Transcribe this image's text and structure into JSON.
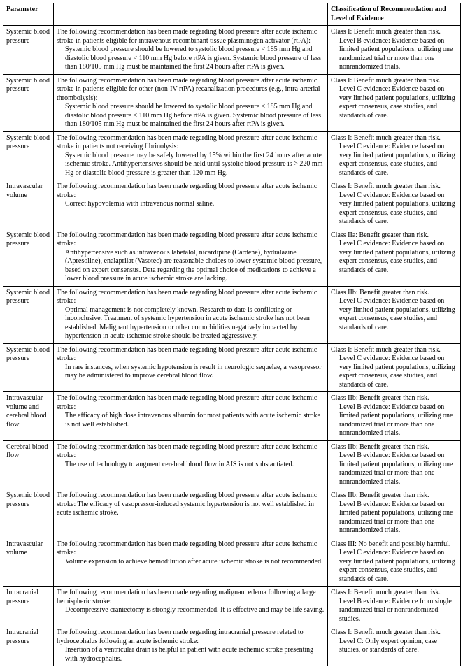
{
  "headers": {
    "parameter": "Parameter",
    "description": "",
    "classification": "Classification of Recommendation and Level of Evidence"
  },
  "rows": [
    {
      "parameter": "Systemic blood pressure",
      "desc_intro": "The following recommendation has been made regarding blood pressure after acute ischemic stroke in patients eligible for intravenous recombinant tissue plasminogen activator (rtPA):",
      "desc_body": "Systemic blood pressure should be lowered to systolic blood pressure < 185 mm Hg and diastolic blood pressure < 110 mm Hg before rtPA is given. Systemic blood pressure of less than 180/105 mm Hg must be maintained the first 24 hours after rtPA is given.",
      "class_line1": "Class I: Benefit much greater than risk.",
      "class_line2": "Level B evidence: Evidence based on limited patient populations, utilizing one randomized trial or more than one nonrandomized trials."
    },
    {
      "parameter": "Systemic blood pressure",
      "desc_intro": "The following recommendation has been made regarding blood pressure after acute ischemic stroke in patients eligible for other (non-IV rtPA) recanalization procedures (e.g., intra-arterial thrombolysis):",
      "desc_body": "Systemic blood pressure should be lowered to systolic blood pressure < 185 mm Hg and diastolic blood pressure < 110 mm Hg before rtPA is given. Systemic blood pressure of less than 180/105 mm Hg must be maintained the first 24 hours after rtPA is given.",
      "class_line1": "Class I: Benefit much greater than risk.",
      "class_line2": "Level C evidence: Evidence based on very limited patient populations, utilizing expert consensus, case studies, and standards of care."
    },
    {
      "parameter": "Systemic blood pressure",
      "desc_intro": "The following recommendation has been made regarding blood pressure after acute ischemic stroke in patients not receiving fibrinolysis:",
      "desc_body": "Systemic blood pressure may be safely lowered by 15% within the first 24 hours after acute ischemic stroke. Antihypertensives should be held until systolic blood pressure is > 220 mm Hg or diastolic blood pressure is greater than 120 mm Hg.",
      "class_line1": "Class I: Benefit much greater than risk.",
      "class_line2": "Level C evidence: Evidence based on very limited patient populations, utilizing expert consensus, case studies, and standards of care."
    },
    {
      "parameter": "Intravascular volume",
      "desc_intro": "The following recommendation has been made regarding blood pressure after acute ischemic stroke:",
      "desc_body": "Correct hypovolemia with intravenous normal saline.",
      "class_line1": "Class I: Benefit much greater than risk.",
      "class_line2": "Level C evidence: Evidence based on very limited patient populations, utilizing expert consensus, case studies, and standards of care."
    },
    {
      "parameter": "Systemic blood pressure",
      "desc_intro": "The following recommendation has been made regarding blood pressure after acute ischemic stroke:",
      "desc_body": "Antihypertensive such as intravenous labetalol, nicardipine (Cardene), hydralazine (Apresoline), enalaprilat (Vasotec) are reasonable choices to lower systemic blood pressure, based on expert consensus. Data regarding the optimal choice of medications to achieve a lower blood pressure in acute ischemic stroke are lacking.",
      "class_line1": "Class IIa: Benefit greater than risk.",
      "class_line2": "Level C evidence: Evidence based on very limited patient populations, utilizing expert consensus, case studies, and standards of care."
    },
    {
      "parameter": "Systemic blood pressure",
      "desc_intro": "The following recommendation has been made regarding blood pressure after acute ischemic stroke:",
      "desc_body": "Optimal management is not completely known. Research to date is conflicting or inconclusive. Treatment of systemic hypertension in acute ischemic stroke has not been established. Malignant hypertension or other comorbidities negatively impacted by hypertension in acute ischemic stroke should be treated aggressively.",
      "class_line1": "Class IIb: Benefit greater than risk.",
      "class_line2": "Level C evidence: Evidence based on very limited patient populations, utilizing expert consensus, case studies, and standards of care."
    },
    {
      "parameter": "Systemic blood pressure",
      "desc_intro": "The following recommendation has been made regarding blood pressure after acute ischemic stroke:",
      "desc_body": "In rare instances, when systemic hypotension is result in neurologic sequelae, a vasopressor may be administered to improve cerebral blood flow.",
      "class_line1": "Class I: Benefit much greater than risk.",
      "class_line2": "Level C evidence: Evidence based on very limited patient populations, utilizing expert consensus, case studies, and standards of care."
    },
    {
      "parameter": "Intravascular volume and cerebral blood flow",
      "desc_intro": "The following recommendation has been made regarding blood pressure after acute ischemic stroke:",
      "desc_body": "The efficacy of high dose intravenous albumin for most patients with acute ischemic stroke is not well established.",
      "class_line1": "Class IIb: Benefit greater than risk.",
      "class_line2": "Level B evidence: Evidence based on limited patient populations, utilizing one randomized trial or more than one nonrandomized trials."
    },
    {
      "parameter": "Cerebral blood flow",
      "desc_intro": "The following recommendation has been made regarding blood pressure after acute ischemic stroke:",
      "desc_body": "The use of technology to augment cerebral blood flow in AIS is not substantiated.",
      "class_line1": "Class IIb: Benefit greater than risk.",
      "class_line2": "Level B evidence: Evidence based on limited patient populations, utilizing one randomized trial or more than one nonrandomized trials."
    },
    {
      "parameter": "Systemic blood pressure",
      "desc_intro": "The following recommendation has been made regarding blood pressure after acute ischemic stroke: The efficacy of vasopressor-induced systemic hypertension is not well established in acute ischemic stroke.",
      "desc_body": "",
      "class_line1": "Class IIb: Benefit greater than risk.",
      "class_line2": "Level B evidence: Evidence based on limited patient populations, utilizing one randomized trial or more than one nonrandomized trials."
    },
    {
      "parameter": "Intravascular volume",
      "desc_intro": "The following recommendation has been made regarding blood pressure after acute ischemic stroke:",
      "desc_body": "Volume expansion to achieve hemodilution after acute ischemic stroke is not recommended.",
      "class_line1": "Class III: No benefit and possibly harmful.",
      "class_line2": "Level C evidence: Evidence based on very limited patient populations, utilizing expert consensus, case studies, and standards of care."
    },
    {
      "parameter": "Intracranial pressure",
      "desc_intro": "The following recommendation has been made regarding malignant edema following a large hemispheric stroke:",
      "desc_body": "Decompressive craniectomy is strongly recommended. It is effective and may be life saving.",
      "class_line1": "Class I: Benefit much greater than risk.",
      "class_line2": "Level B evidence: Evidence from single randomized trial or nonrandomized studies."
    },
    {
      "parameter": "Intracranial pressure",
      "desc_intro": "The following recommendation has been made regarding intracranial pressure related to hydrocephalus following an acute ischemic stroke:",
      "desc_body": "Insertion of a ventricular drain is helpful in patient with acute ischemic stroke presenting with hydrocephalus.",
      "class_line1": "Class I: Benefit much greater than risk.",
      "class_line2": "Level C: Only expert opinion, case studies, or standards of care."
    }
  ]
}
